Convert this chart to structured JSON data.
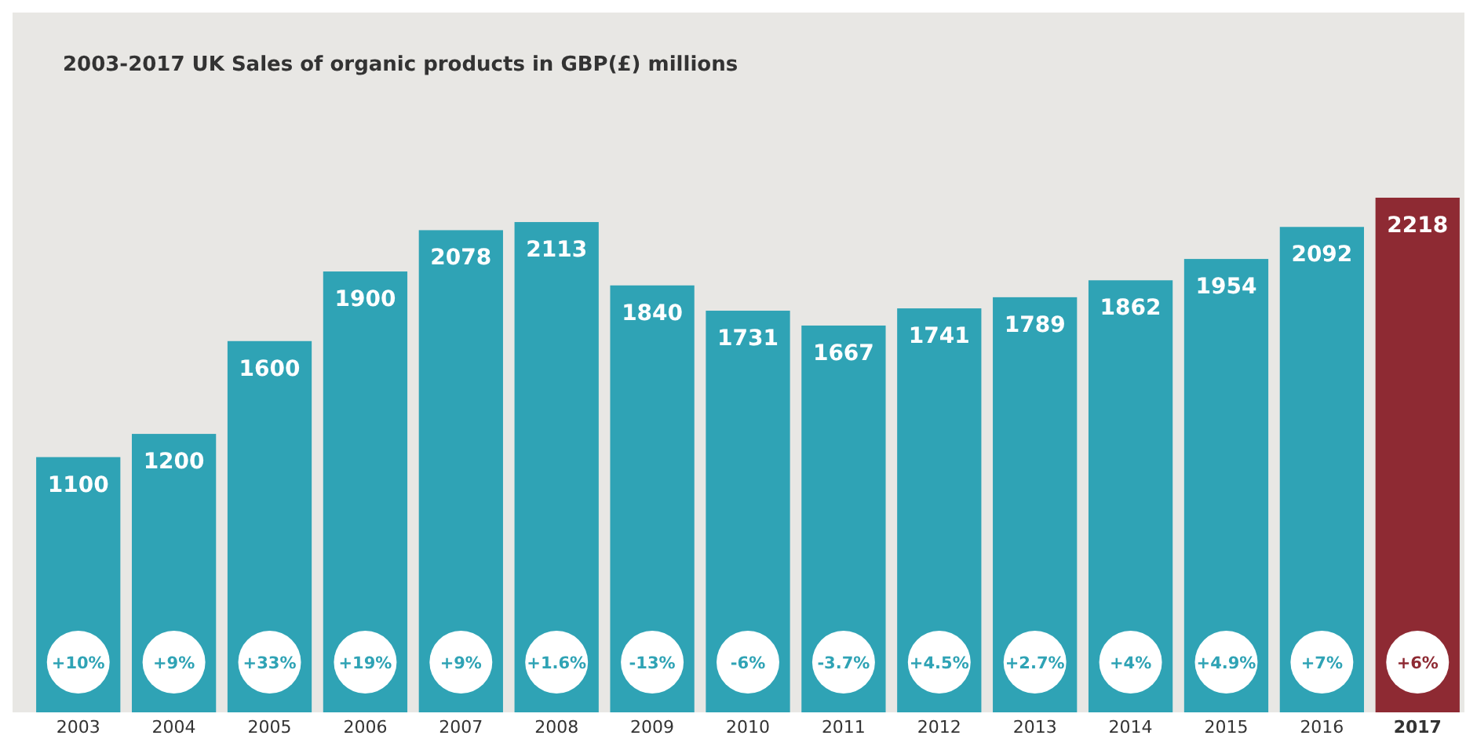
{
  "chart_data": {
    "type": "bar",
    "title": "2003-2017 UK Sales of organic products in GBP(£) millions",
    "categories": [
      "2003",
      "2004",
      "2005",
      "2006",
      "2007",
      "2008",
      "2009",
      "2010",
      "2011",
      "2012",
      "2013",
      "2014",
      "2015",
      "2016",
      "2017"
    ],
    "values": [
      1100,
      1200,
      1600,
      1900,
      2078,
      2113,
      1840,
      1731,
      1667,
      1741,
      1789,
      1862,
      1954,
      2092,
      2218
    ],
    "colors": [
      "#2fa3b5",
      "#2fa3b5",
      "#2fa3b5",
      "#2fa3b5",
      "#2fa3b5",
      "#2fa3b5",
      "#2fa3b5",
      "#2fa3b5",
      "#2fa3b5",
      "#2fa3b5",
      "#2fa3b5",
      "#2fa3b5",
      "#2fa3b5",
      "#2fa3b5",
      "#8e2a33"
    ],
    "data_labels": true,
    "annotations": [
      {
        "text": "+10%",
        "x": "2003"
      },
      {
        "text": "+9%",
        "x": "2004"
      },
      {
        "text": "+33%",
        "x": "2005"
      },
      {
        "text": "+19%",
        "x": "2006"
      },
      {
        "text": "+9%",
        "x": "2007"
      },
      {
        "text": "+1.6%",
        "x": "2008"
      },
      {
        "text": "-13%",
        "x": "2009"
      },
      {
        "text": "-6%",
        "x": "2010"
      },
      {
        "text": "-3.7%",
        "x": "2011"
      },
      {
        "text": "+4.5%",
        "x": "2012"
      },
      {
        "text": "+2.7%",
        "x": "2013"
      },
      {
        "text": "+4%",
        "x": "2014"
      },
      {
        "text": "+4.9%",
        "x": "2015"
      },
      {
        "text": "+7%",
        "x": "2016"
      },
      {
        "text": "+6%",
        "x": "2017"
      }
    ]
  }
}
